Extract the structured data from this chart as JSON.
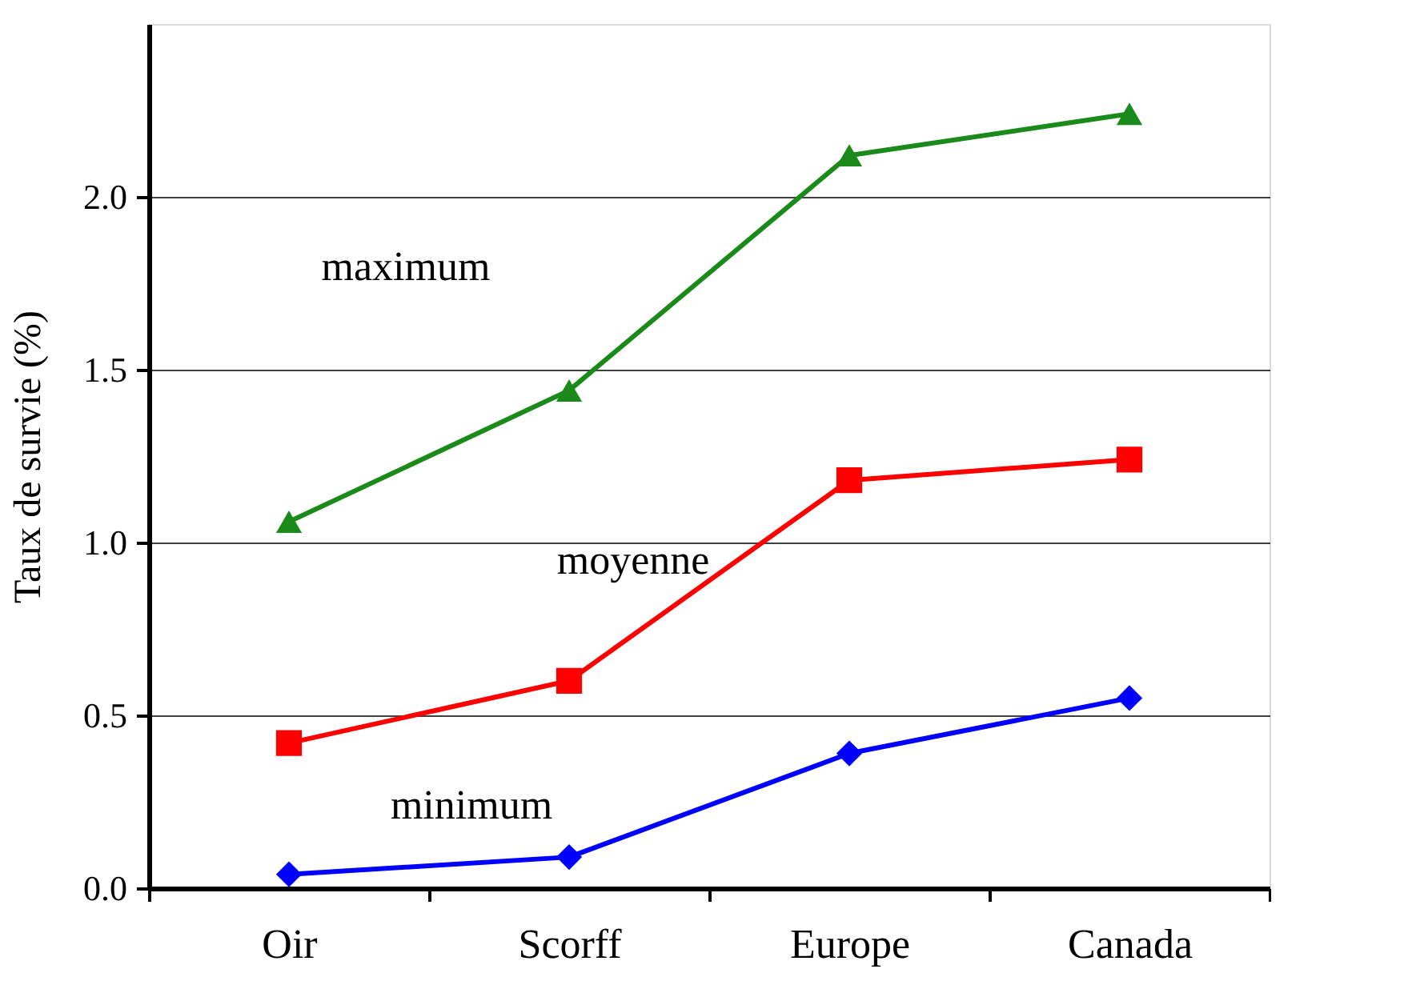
{
  "chart_data": {
    "type": "line",
    "ylabel": "Taux de survie (%)",
    "categories": [
      "Oir",
      "Scorff",
      "Europe",
      "Canada"
    ],
    "series": [
      {
        "name": "maximum",
        "color": "#1a8a1a",
        "marker": "triangle",
        "values": [
          1.06,
          1.44,
          2.12,
          2.24
        ]
      },
      {
        "name": "moyenne",
        "color": "#ff0000",
        "marker": "square",
        "values": [
          0.42,
          0.6,
          1.18,
          1.24
        ]
      },
      {
        "name": "minimum",
        "color": "#0000ff",
        "marker": "diamond",
        "values": [
          0.04,
          0.09,
          0.39,
          0.55
        ]
      }
    ],
    "ylim": [
      0,
      2.5
    ],
    "yticks": [
      {
        "value": 0,
        "label": "0.0"
      },
      {
        "value": 0.5,
        "label": "0.5"
      },
      {
        "value": 1,
        "label": "1.0"
      },
      {
        "value": 1.5,
        "label": "1.5"
      },
      {
        "value": 2,
        "label": "2.0"
      }
    ],
    "grid": "y",
    "legend": false,
    "line_style": "solid"
  }
}
